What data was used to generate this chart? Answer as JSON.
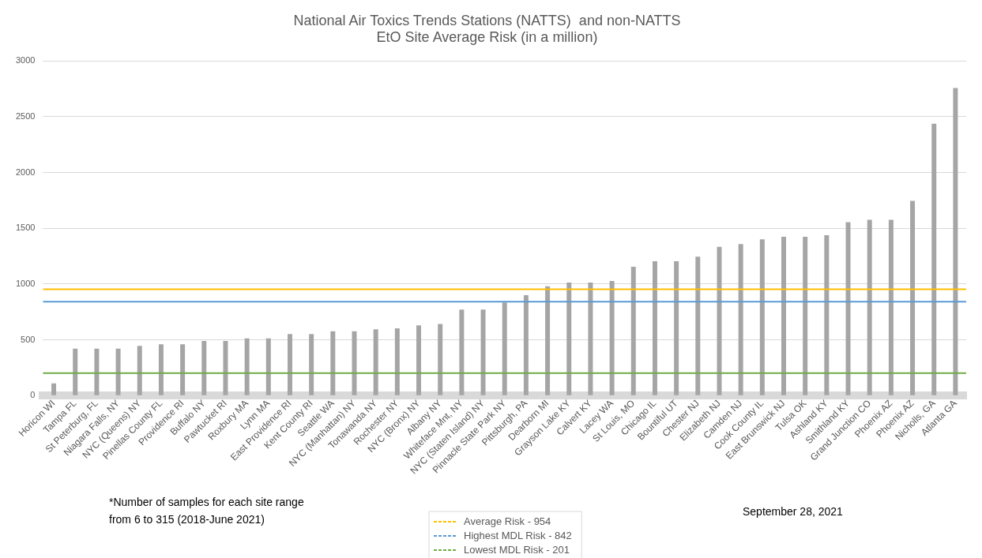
{
  "chart_data": {
    "type": "bar",
    "title": [
      "National Air Toxics Trends Stations (NATTS)  and non-NATTS",
      "EtO Site Average Risk (in a million)"
    ],
    "categories": [
      "Horicon WI",
      "Tampa FL",
      "St Peterburg, FL",
      "Niagara Falls, NY",
      "NYC (Queens) NY",
      "Pinellas County FL",
      "Providence RI",
      "Buffalo NY",
      "Pawtucket RI",
      "Roxbury MA",
      "Lynn MA",
      "East Providence RI",
      "Kent County RI",
      "Seattle WA",
      "NYC (Manhattan) NY",
      "Tonawanda NY",
      "Rochester NY",
      "NYC (Bronx) NY",
      "Albany NY",
      "Whiteface Mnt, NY",
      "NYC (Staten Island) NY",
      "Pinnacle State Park NY",
      "Pittsburgh, PA",
      "Dearborn MI",
      "Grayson Lake KY",
      "Calvert KY",
      "Lacey WA",
      "St Louis, MO",
      "Chicago IL",
      "Bountiful UT",
      "Chester NJ",
      "Elizabeth NJ",
      "Camden NJ",
      "Cook County IL",
      "East Brunswick NJ",
      "Tulsa OK",
      "Ashland KY",
      "Smithland KY",
      "Grand Junction CO",
      "Phoenix AZ",
      "Phoenix AZ",
      "Nicholls, GA",
      "Atlanta GA"
    ],
    "values": [
      110,
      420,
      420,
      420,
      445,
      460,
      460,
      490,
      490,
      513,
      513,
      552,
      552,
      577,
      577,
      594,
      603,
      629,
      642,
      771,
      771,
      835,
      900,
      980,
      1014,
      1014,
      1027,
      1155,
      1204,
      1204,
      1245,
      1334,
      1359,
      1400,
      1424,
      1424,
      1438,
      1554,
      1576,
      1576,
      1745,
      2438,
      2758
    ],
    "color": "#a5a5a5",
    "ylim": [
      0,
      3000
    ],
    "yticks": [
      0,
      500,
      1000,
      1500,
      2000,
      2500,
      3000
    ],
    "grid": "y",
    "ref_lines": [
      {
        "axis": "y",
        "value": 954,
        "label": "Average Risk - 954",
        "color": "#ffc000"
      },
      {
        "axis": "y",
        "value": 842,
        "label": "Highest MDL Risk - 842",
        "color": "#5b9bd5"
      },
      {
        "axis": "y",
        "value": 201,
        "label": "Lowest MDL Risk - 201",
        "color": "#70ad47"
      }
    ],
    "legend": "bottom",
    "annotations": [
      "*Number of samples for each site range\nfrom 6 to 315 (2018-June 2021)",
      "September 28, 2021"
    ]
  }
}
